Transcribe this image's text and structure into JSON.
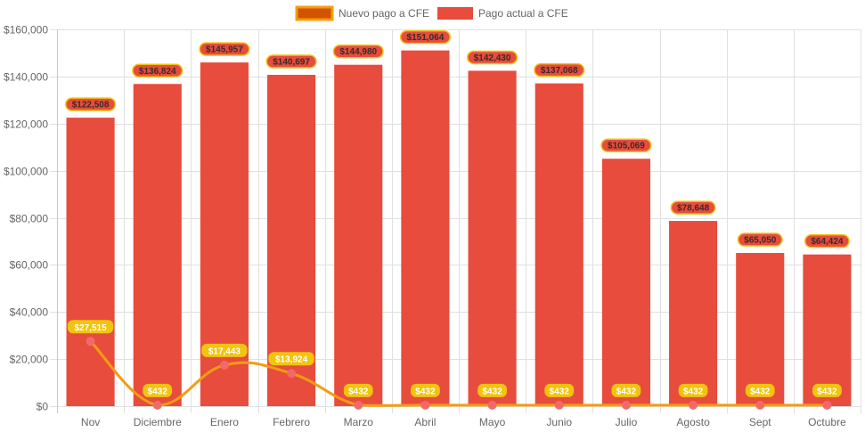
{
  "chart_data": {
    "type": "bar",
    "title": "",
    "xlabel": "",
    "ylabel": "",
    "categories": [
      "Nov",
      "Diciembre",
      "Enero",
      "Febrero",
      "Marzo",
      "Abril",
      "Mayo",
      "Junio",
      "Julio",
      "Agosto",
      "Sept",
      "Octubre"
    ],
    "ylim": [
      0,
      160000
    ],
    "yticks": [
      0,
      20000,
      40000,
      60000,
      80000,
      100000,
      120000,
      140000,
      160000
    ],
    "ytick_labels": [
      "$0",
      "$20,000",
      "$40,000",
      "$60,000",
      "$80,000",
      "$100,000",
      "$120,000",
      "$140,000",
      "$160,000"
    ],
    "grid": true,
    "legend_position": "top-center",
    "series": [
      {
        "name": "Nuevo pago a CFE",
        "type": "line",
        "smooth": true,
        "color": "#f39c12",
        "point_color": "#f16a6a",
        "label_bg": "#f1c40f",
        "values": [
          27515,
          432,
          17443,
          13924,
          432,
          432,
          432,
          432,
          432,
          432,
          432,
          432
        ],
        "labels": [
          "$27,515",
          "$432",
          "$17,443",
          "$13,924",
          "$432",
          "$432",
          "$432",
          "$432",
          "$432",
          "$432",
          "$432",
          "$432"
        ]
      },
      {
        "name": "Pago actual a CFE",
        "type": "bar",
        "color": "#e74c3c",
        "label_border": "#f1c40f",
        "values": [
          122508,
          136824,
          145957,
          140697,
          144980,
          151064,
          142430,
          137068,
          105069,
          78648,
          65050,
          64424
        ],
        "labels": [
          "$122,508",
          "$136,824",
          "$145,957",
          "$140,697",
          "$144,980",
          "$151,064",
          "$142,430",
          "$137,068",
          "$105,069",
          "$78,648",
          "$65,050",
          "$64,424"
        ]
      }
    ]
  }
}
